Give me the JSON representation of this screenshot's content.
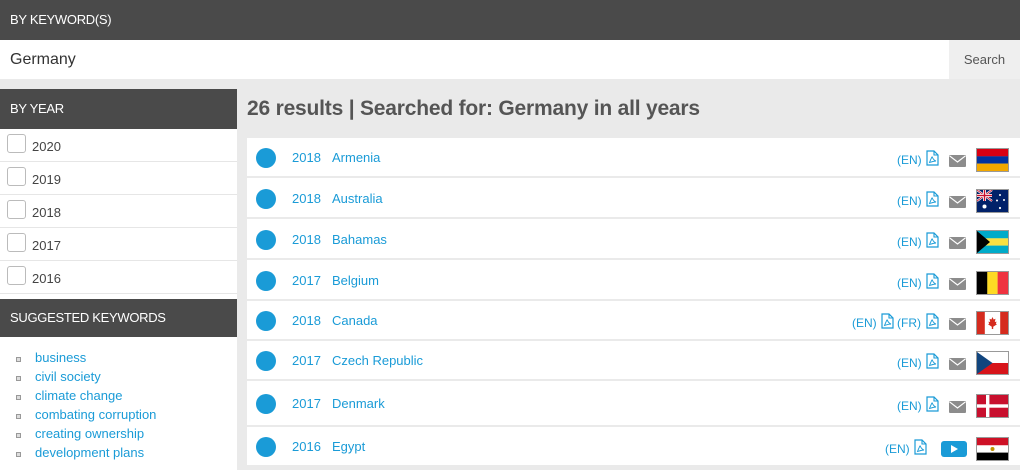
{
  "keyword_section": {
    "label": "BY KEYWORD(S)"
  },
  "search": {
    "value": "Germany",
    "button_label": "Search"
  },
  "year_filter": {
    "label": "BY YEAR",
    "years": [
      "2020",
      "2019",
      "2018",
      "2017",
      "2016"
    ]
  },
  "suggested": {
    "label": "SUGGESTED KEYWORDS",
    "keywords": [
      "business",
      "civil society",
      "climate change",
      "combating corruption",
      "creating ownership",
      "development plans"
    ]
  },
  "results_summary": "26 results | Searched for: Germany in all years",
  "results": [
    {
      "year": "2018",
      "country": "Armenia",
      "docs": [
        "(EN)"
      ],
      "flag": "armenia"
    },
    {
      "year": "2018",
      "country": "Australia",
      "docs": [
        "(EN)"
      ],
      "flag": "australia"
    },
    {
      "year": "2018",
      "country": "Bahamas",
      "docs": [
        "(EN)"
      ],
      "flag": "bahamas"
    },
    {
      "year": "2017",
      "country": "Belgium",
      "docs": [
        "(EN)"
      ],
      "flag": "belgium"
    },
    {
      "year": "2018",
      "country": "Canada",
      "docs": [
        "(EN)",
        "(FR)"
      ],
      "flag": "canada"
    },
    {
      "year": "2017",
      "country": "Czech Republic",
      "docs": [
        "(EN)"
      ],
      "flag": "czech-republic"
    },
    {
      "year": "2017",
      "country": "Denmark",
      "docs": [
        "(EN)"
      ],
      "flag": "denmark"
    },
    {
      "year": "2016",
      "country": "Egypt",
      "docs": [
        "(EN)"
      ],
      "flag": "egypt",
      "extra_icon": "video-icon"
    }
  ],
  "colors": {
    "accent": "#1a9bd7",
    "header_bg": "#4a4a4a",
    "page_bg": "#eaeaea"
  }
}
